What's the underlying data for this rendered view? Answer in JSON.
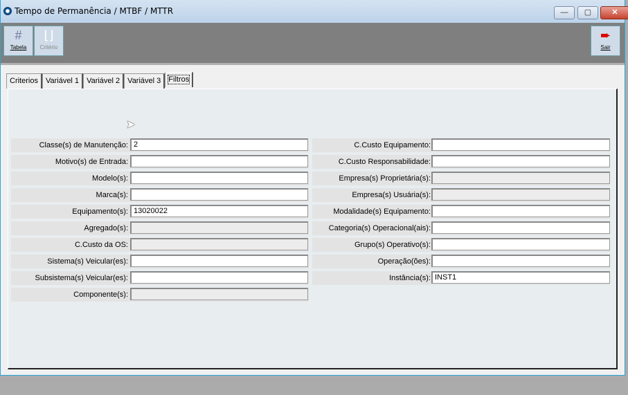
{
  "window": {
    "title": "Tempo de Permanência / MTBF / MTTR",
    "minimize": "—",
    "maximize": "▢",
    "close": "✕"
  },
  "toolbar": {
    "tabela": "Tabela",
    "criterio": "Critério",
    "sair": "Sair"
  },
  "tabs": [
    "Criterios",
    "Variável 1",
    "Variável 2",
    "Variável 3",
    "Filtros"
  ],
  "left_fields": [
    {
      "label": "Classe(s) de Manutenção:",
      "value": "2",
      "enabled": true
    },
    {
      "label": "Motivo(s) de Entrada:",
      "value": "",
      "enabled": true
    },
    {
      "label": "Modelo(s):",
      "value": "",
      "enabled": true
    },
    {
      "label": "Marca(s):",
      "value": "",
      "enabled": true
    },
    {
      "label": "Equipamento(s):",
      "value": "13020022",
      "enabled": true
    },
    {
      "label": "Agregado(s):",
      "value": "",
      "enabled": false
    },
    {
      "label": "C.Custo da OS:",
      "value": "",
      "enabled": false
    },
    {
      "label": "Sistema(s) Veicular(es):",
      "value": "",
      "enabled": true
    },
    {
      "label": "Subsistema(s) Veicular(es):",
      "value": "",
      "enabled": true
    },
    {
      "label": "Componente(s):",
      "value": "",
      "enabled": false
    }
  ],
  "right_fields": [
    {
      "label": "C.Custo Equipamento:",
      "value": "",
      "enabled": true
    },
    {
      "label": "C.Custo Responsabilidade:",
      "value": "",
      "enabled": true
    },
    {
      "label": "Empresa(s) Proprietária(s):",
      "value": "",
      "enabled": false
    },
    {
      "label": "Empresa(s) Usuária(s):",
      "value": "",
      "enabled": false
    },
    {
      "label": "Modalidade(s) Equipamento:",
      "value": "",
      "enabled": true
    },
    {
      "label": "Categoria(s) Operacional(ais):",
      "value": "",
      "enabled": true
    },
    {
      "label": "Grupo(s) Operativo(s):",
      "value": "",
      "enabled": true
    },
    {
      "label": "Operação(ões):",
      "value": "",
      "enabled": true
    },
    {
      "label": "Instância(s):",
      "value": "INST1",
      "enabled": true
    }
  ]
}
